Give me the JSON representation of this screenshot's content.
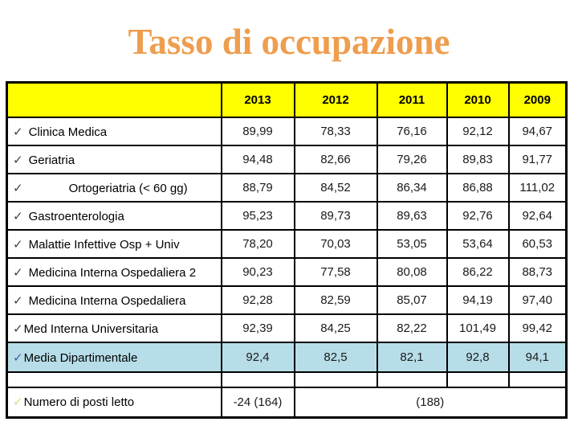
{
  "title": "Tasso di occupazione",
  "palette": {
    "title_color": "#EF9D4E",
    "header_bg": "#FFFF00",
    "summary_bg": "#B7DEE8",
    "border_color": "#000000",
    "check_dark": "#3F3F3F",
    "check_blue": "#3C5CA8",
    "check_yellow": "#DFDC73"
  },
  "table": {
    "check_glyph": "✓",
    "header": {
      "label_col": "",
      "years": [
        "2013",
        "2012",
        "2011",
        "2010",
        "2009"
      ]
    },
    "rows": [
      {
        "label": "Clinica Medica",
        "check": "dark",
        "spaced": true,
        "indent": false,
        "values": [
          "89,99",
          "78,33",
          "76,16",
          "92,12",
          "94,67"
        ]
      },
      {
        "label": "Geriatria",
        "check": "dark",
        "spaced": true,
        "indent": false,
        "values": [
          "94,48",
          "82,66",
          "79,26",
          "89,83",
          "91,77"
        ]
      },
      {
        "label": "Ortogeriatria (< 60 gg)",
        "check": "dark",
        "spaced": true,
        "indent": true,
        "values": [
          "88,79",
          "84,52",
          "86,34",
          "86,88",
          "111,02"
        ]
      },
      {
        "label": "Gastroenterologia",
        "check": "dark",
        "spaced": true,
        "indent": false,
        "values": [
          "95,23",
          "89,73",
          "89,63",
          "92,76",
          "92,64"
        ]
      },
      {
        "label": "Malattie Infettive Osp + Univ",
        "check": "dark",
        "spaced": true,
        "indent": false,
        "values": [
          "78,20",
          "70,03",
          "53,05",
          "53,64",
          "60,53"
        ]
      },
      {
        "label": "Medicina Interna Ospedaliera 2",
        "check": "dark",
        "spaced": true,
        "indent": false,
        "values": [
          "90,23",
          "77,58",
          "80,08",
          "86,22",
          "88,73"
        ]
      },
      {
        "label": "Medicina Interna Ospedaliera",
        "check": "dark",
        "spaced": true,
        "indent": false,
        "values": [
          "92,28",
          "82,59",
          "85,07",
          "94,19",
          "97,40"
        ]
      },
      {
        "label": "Med Interna Universitaria",
        "check": "dark",
        "spaced": false,
        "indent": false,
        "values": [
          "92,39",
          "84,25",
          "82,22",
          "101,49",
          "99,42"
        ]
      }
    ],
    "summary_row": {
      "label": "Media Dipartimentale",
      "check": "blue",
      "spaced": false,
      "indent": false,
      "values": [
        "92,4",
        "82,5",
        "82,1",
        "92,8",
        "94,1"
      ]
    },
    "beds_row": {
      "label": "Numero di posti letto",
      "check": "yellow",
      "spaced": false,
      "value_2013": "-24 (164)",
      "value_merged": "(188)"
    }
  }
}
